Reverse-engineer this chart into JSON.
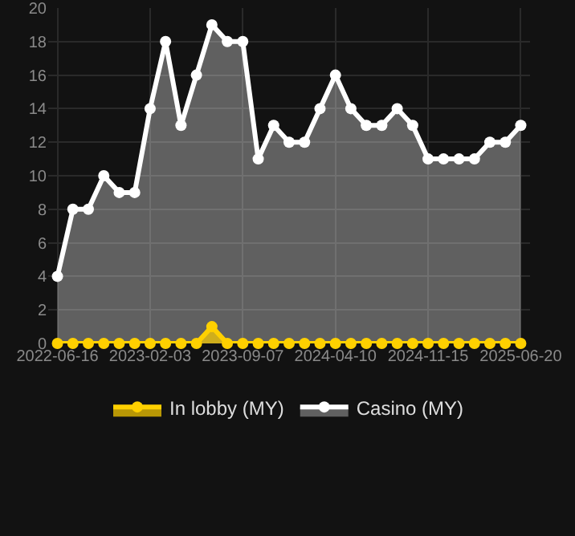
{
  "chart_data": {
    "type": "area",
    "categories": [
      "2022-06-16",
      null,
      null,
      null,
      null,
      null,
      "2023-02-03",
      null,
      null,
      null,
      null,
      null,
      "2023-09-07",
      null,
      null,
      null,
      null,
      null,
      "2024-04-10",
      null,
      null,
      null,
      null,
      null,
      "2024-11-15",
      null,
      null,
      null,
      null,
      null,
      "2025-06-20"
    ],
    "series": [
      {
        "name": "In lobby (MY)",
        "color": "#ffd000",
        "values": [
          0,
          0,
          0,
          0,
          0,
          0,
          0,
          0,
          0,
          0,
          1,
          0,
          0,
          0,
          0,
          0,
          0,
          0,
          0,
          0,
          0,
          0,
          0,
          0,
          0,
          0,
          0,
          0,
          0,
          0,
          0
        ]
      },
      {
        "name": "Casino (MY)",
        "color": "#ffffff",
        "values": [
          4,
          8,
          8,
          10,
          9,
          9,
          14,
          18,
          13,
          16,
          19,
          18,
          18,
          11,
          13,
          12,
          12,
          14,
          16,
          14,
          13,
          13,
          14,
          13,
          11,
          11,
          11,
          11,
          12,
          12,
          13
        ]
      }
    ],
    "ylim": [
      0,
      20
    ],
    "yticks": [
      0,
      2,
      4,
      6,
      8,
      10,
      12,
      14,
      16,
      18,
      20
    ],
    "grid": true,
    "legend": "bottom",
    "marker": "circle"
  }
}
